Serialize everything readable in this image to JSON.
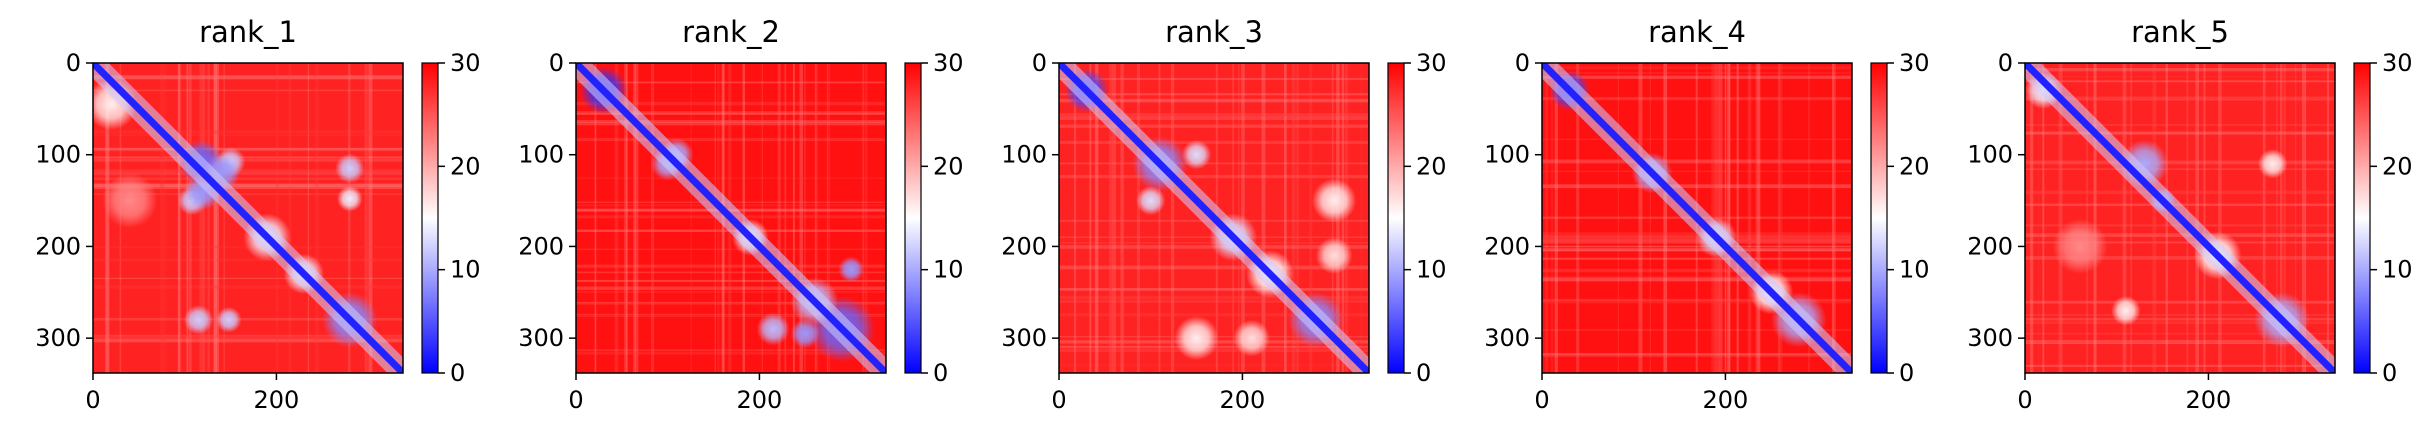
{
  "chart_data": [
    {
      "type": "heatmap",
      "title": "rank_1",
      "xlim": [
        0,
        338
      ],
      "ylim": [
        338,
        0
      ],
      "x_ticks": [
        0,
        200
      ],
      "y_ticks": [
        0,
        100,
        200,
        300
      ],
      "colorbar": {
        "ticks": [
          0,
          10,
          20,
          30
        ],
        "range": [
          0,
          30
        ],
        "colormap": "bwr",
        "low": "#0000ff",
        "mid": "#ffffff",
        "high": "#ff0000"
      },
      "background_value": 28,
      "diagonal_value": 2,
      "blobs": [
        {
          "x": 20,
          "y": 45,
          "r": 28,
          "v": 16
        },
        {
          "x": 118,
          "y": 108,
          "r": 24,
          "v": 6
        },
        {
          "x": 150,
          "y": 108,
          "r": 16,
          "v": 12
        },
        {
          "x": 108,
          "y": 150,
          "r": 16,
          "v": 12
        },
        {
          "x": 120,
          "y": 140,
          "r": 20,
          "v": 9
        },
        {
          "x": 140,
          "y": 120,
          "r": 20,
          "v": 9
        },
        {
          "x": 190,
          "y": 190,
          "r": 26,
          "v": 14
        },
        {
          "x": 280,
          "y": 115,
          "r": 16,
          "v": 12
        },
        {
          "x": 115,
          "y": 280,
          "r": 16,
          "v": 12
        },
        {
          "x": 148,
          "y": 280,
          "r": 14,
          "v": 12
        },
        {
          "x": 280,
          "y": 148,
          "r": 14,
          "v": 14
        },
        {
          "x": 280,
          "y": 280,
          "r": 30,
          "v": 8
        },
        {
          "x": 230,
          "y": 230,
          "r": 22,
          "v": 14
        },
        {
          "x": 40,
          "y": 150,
          "r": 30,
          "v": 22
        }
      ]
    },
    {
      "type": "heatmap",
      "title": "rank_2",
      "xlim": [
        0,
        338
      ],
      "ylim": [
        338,
        0
      ],
      "x_ticks": [
        0,
        200
      ],
      "y_ticks": [
        0,
        100,
        200,
        300
      ],
      "colorbar": {
        "ticks": [
          0,
          10,
          20,
          30
        ],
        "range": [
          0,
          30
        ],
        "colormap": "bwr",
        "low": "#0000ff",
        "mid": "#ffffff",
        "high": "#ff0000"
      },
      "background_value": 29,
      "diagonal_value": 2,
      "blobs": [
        {
          "x": 30,
          "y": 30,
          "r": 26,
          "v": 3
        },
        {
          "x": 110,
          "y": 100,
          "r": 18,
          "v": 10
        },
        {
          "x": 100,
          "y": 110,
          "r": 18,
          "v": 10
        },
        {
          "x": 290,
          "y": 290,
          "r": 36,
          "v": 6
        },
        {
          "x": 215,
          "y": 290,
          "r": 18,
          "v": 11
        },
        {
          "x": 250,
          "y": 295,
          "r": 16,
          "v": 9
        },
        {
          "x": 300,
          "y": 225,
          "r": 14,
          "v": 9
        },
        {
          "x": 190,
          "y": 190,
          "r": 20,
          "v": 14
        },
        {
          "x": 260,
          "y": 260,
          "r": 26,
          "v": 11
        }
      ]
    },
    {
      "type": "heatmap",
      "title": "rank_3",
      "xlim": [
        0,
        338
      ],
      "ylim": [
        338,
        0
      ],
      "x_ticks": [
        0,
        200
      ],
      "y_ticks": [
        0,
        100,
        200,
        300
      ],
      "colorbar": {
        "ticks": [
          0,
          10,
          20,
          30
        ],
        "range": [
          0,
          30
        ],
        "colormap": "bwr",
        "low": "#0000ff",
        "mid": "#ffffff",
        "high": "#ff0000"
      },
      "background_value": 28,
      "diagonal_value": 2,
      "blobs": [
        {
          "x": 30,
          "y": 30,
          "r": 24,
          "v": 4
        },
        {
          "x": 110,
          "y": 110,
          "r": 30,
          "v": 8
        },
        {
          "x": 150,
          "y": 100,
          "r": 16,
          "v": 13
        },
        {
          "x": 100,
          "y": 150,
          "r": 16,
          "v": 13
        },
        {
          "x": 190,
          "y": 190,
          "r": 26,
          "v": 13
        },
        {
          "x": 280,
          "y": 280,
          "r": 30,
          "v": 8
        },
        {
          "x": 150,
          "y": 300,
          "r": 24,
          "v": 16
        },
        {
          "x": 300,
          "y": 150,
          "r": 24,
          "v": 16
        },
        {
          "x": 230,
          "y": 230,
          "r": 26,
          "v": 15
        },
        {
          "x": 210,
          "y": 300,
          "r": 20,
          "v": 17
        },
        {
          "x": 300,
          "y": 210,
          "r": 20,
          "v": 17
        }
      ]
    },
    {
      "type": "heatmap",
      "title": "rank_4",
      "xlim": [
        0,
        338
      ],
      "ylim": [
        338,
        0
      ],
      "x_ticks": [
        0,
        200
      ],
      "y_ticks": [
        0,
        100,
        200,
        300
      ],
      "colorbar": {
        "ticks": [
          0,
          10,
          20,
          30
        ],
        "range": [
          0,
          30
        ],
        "colormap": "bwr",
        "low": "#0000ff",
        "mid": "#ffffff",
        "high": "#ff0000"
      },
      "background_value": 29,
      "diagonal_value": 2,
      "blobs": [
        {
          "x": 30,
          "y": 30,
          "r": 22,
          "v": 4
        },
        {
          "x": 120,
          "y": 120,
          "r": 22,
          "v": 10
        },
        {
          "x": 190,
          "y": 190,
          "r": 22,
          "v": 13
        },
        {
          "x": 280,
          "y": 280,
          "r": 30,
          "v": 10
        },
        {
          "x": 250,
          "y": 250,
          "r": 24,
          "v": 15
        }
      ]
    },
    {
      "type": "heatmap",
      "title": "rank_5",
      "xlim": [
        0,
        338
      ],
      "ylim": [
        338,
        0
      ],
      "x_ticks": [
        0,
        200
      ],
      "y_ticks": [
        0,
        100,
        200,
        300
      ],
      "colorbar": {
        "ticks": [
          0,
          10,
          20,
          30
        ],
        "range": [
          0,
          30
        ],
        "colormap": "bwr",
        "low": "#0000ff",
        "mid": "#ffffff",
        "high": "#ff0000"
      },
      "background_value": 28,
      "diagonal_value": 2,
      "blobs": [
        {
          "x": 20,
          "y": 30,
          "r": 20,
          "v": 14
        },
        {
          "x": 130,
          "y": 110,
          "r": 26,
          "v": 10
        },
        {
          "x": 150,
          "y": 150,
          "r": 14,
          "v": 9
        },
        {
          "x": 270,
          "y": 110,
          "r": 16,
          "v": 16
        },
        {
          "x": 110,
          "y": 270,
          "r": 16,
          "v": 16
        },
        {
          "x": 280,
          "y": 280,
          "r": 30,
          "v": 10
        },
        {
          "x": 210,
          "y": 210,
          "r": 26,
          "v": 15
        },
        {
          "x": 60,
          "y": 200,
          "r": 30,
          "v": 22
        }
      ]
    }
  ]
}
